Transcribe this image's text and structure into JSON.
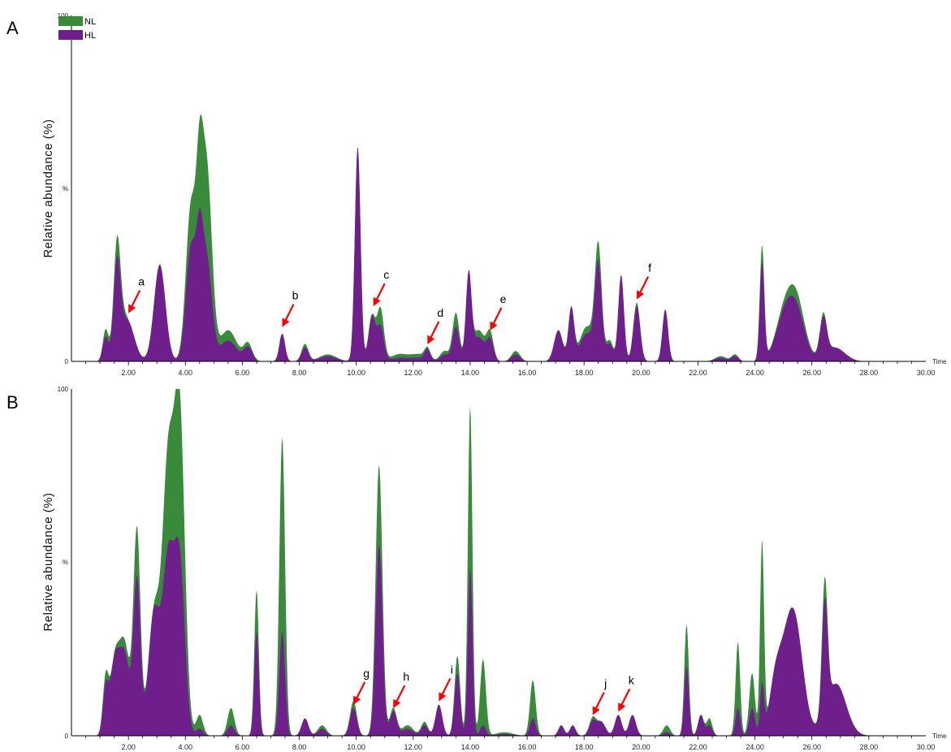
{
  "legend": [
    {
      "label": "NL",
      "color": "#3a8a3c"
    },
    {
      "label": "HL",
      "color": "#6e1f8c"
    }
  ],
  "annotation_color": "#ff0000",
  "chart_data": [
    {
      "type": "area",
      "panel_label": "A",
      "ylabel": "Relative abundance (%)",
      "xlabel": "Time",
      "y_tick_labels": [
        "0",
        "%",
        "100"
      ],
      "xlim": [
        0,
        30
      ],
      "ylim": [
        0,
        100
      ],
      "x_ticks": [
        2,
        4,
        6,
        8,
        10,
        12,
        14,
        16,
        18,
        20,
        22,
        24,
        26,
        28,
        30
      ],
      "x_tick_labels": [
        "2.00",
        "4.00",
        "6.00",
        "8.00",
        "10.00",
        "12.00",
        "14.00",
        "16.00",
        "18.00",
        "20.00",
        "22.00",
        "24.00",
        "26.00",
        "28.00",
        "30.00"
      ],
      "series": [
        {
          "name": "NL",
          "color": "#3a8a3c",
          "peaks": [
            [
              1.2,
              9,
              0.1
            ],
            [
              1.6,
              30,
              0.12
            ],
            [
              1.9,
              13,
              0.25
            ],
            [
              3.1,
              28,
              0.2
            ],
            [
              4.2,
              45,
              0.18
            ],
            [
              4.5,
              38,
              0.12
            ],
            [
              4.75,
              55,
              0.18
            ],
            [
              5.5,
              9,
              0.3
            ],
            [
              6.2,
              5,
              0.15
            ],
            [
              7.4,
              8,
              0.1
            ],
            [
              8.2,
              5,
              0.12
            ],
            [
              9.0,
              2,
              0.3
            ],
            [
              10.05,
              62,
              0.1
            ],
            [
              10.55,
              13,
              0.12
            ],
            [
              10.85,
              15,
              0.12
            ],
            [
              11.5,
              2,
              0.3
            ],
            [
              12.2,
              2,
              0.3
            ],
            [
              12.5,
              3,
              0.1
            ],
            [
              13.1,
              3,
              0.15
            ],
            [
              13.5,
              14,
              0.12
            ],
            [
              13.95,
              22,
              0.1
            ],
            [
              14.3,
              9,
              0.2
            ],
            [
              14.7,
              8,
              0.12
            ],
            [
              15.6,
              3,
              0.15
            ],
            [
              17.1,
              9,
              0.15
            ],
            [
              17.55,
              15,
              0.1
            ],
            [
              18.1,
              10,
              0.25
            ],
            [
              18.5,
              32,
              0.12
            ],
            [
              18.9,
              6,
              0.12
            ],
            [
              19.3,
              24,
              0.1
            ],
            [
              19.85,
              17,
              0.12
            ],
            [
              20.85,
              15,
              0.1
            ],
            [
              22.8,
              1.5,
              0.2
            ],
            [
              23.3,
              2,
              0.12
            ],
            [
              24.25,
              33,
              0.08
            ],
            [
              25.0,
              12,
              0.3
            ],
            [
              25.45,
              17,
              0.3
            ],
            [
              26.4,
              12,
              0.12
            ],
            [
              26.8,
              4,
              0.35
            ]
          ]
        },
        {
          "name": "HL",
          "color": "#6e1f8c",
          "peaks": [
            [
              1.2,
              7,
              0.1
            ],
            [
              1.6,
              26,
              0.12
            ],
            [
              1.95,
              12,
              0.25
            ],
            [
              3.1,
              28,
              0.2
            ],
            [
              4.2,
              33,
              0.18
            ],
            [
              4.5,
              25,
              0.12
            ],
            [
              4.75,
              29,
              0.18
            ],
            [
              5.5,
              6,
              0.3
            ],
            [
              6.2,
              4,
              0.15
            ],
            [
              7.4,
              8,
              0.1
            ],
            [
              8.2,
              4,
              0.12
            ],
            [
              9.0,
              1.5,
              0.3
            ],
            [
              10.05,
              62,
              0.1
            ],
            [
              10.55,
              13,
              0.12
            ],
            [
              10.85,
              10,
              0.12
            ],
            [
              11.5,
              1,
              0.3
            ],
            [
              12.2,
              1,
              0.3
            ],
            [
              12.5,
              3,
              0.1
            ],
            [
              13.1,
              2,
              0.15
            ],
            [
              13.5,
              10,
              0.12
            ],
            [
              13.95,
              25,
              0.1
            ],
            [
              14.3,
              7,
              0.2
            ],
            [
              14.7,
              6,
              0.12
            ],
            [
              15.6,
              2,
              0.15
            ],
            [
              17.1,
              9,
              0.15
            ],
            [
              17.55,
              15,
              0.1
            ],
            [
              18.1,
              8,
              0.25
            ],
            [
              18.5,
              27,
              0.12
            ],
            [
              18.9,
              5,
              0.12
            ],
            [
              19.3,
              25,
              0.1
            ],
            [
              19.85,
              16,
              0.12
            ],
            [
              20.85,
              15,
              0.1
            ],
            [
              22.8,
              1,
              0.2
            ],
            [
              23.3,
              1.5,
              0.12
            ],
            [
              24.25,
              28,
              0.08
            ],
            [
              25.0,
              11,
              0.3
            ],
            [
              25.45,
              14,
              0.3
            ],
            [
              26.4,
              11,
              0.12
            ],
            [
              26.8,
              4,
              0.35
            ]
          ]
        }
      ],
      "annotations": [
        {
          "label": "a",
          "x": 2.0,
          "y": 13
        },
        {
          "label": "b",
          "x": 7.4,
          "y": 9
        },
        {
          "label": "c",
          "x": 10.6,
          "y": 15
        },
        {
          "label": "d",
          "x": 12.5,
          "y": 4
        },
        {
          "label": "e",
          "x": 14.7,
          "y": 8
        },
        {
          "label": "f",
          "x": 19.85,
          "y": 17
        }
      ]
    },
    {
      "type": "area",
      "panel_label": "B",
      "ylabel": "Relative abundance (%)",
      "xlabel": "Time",
      "y_tick_labels": [
        "0",
        "%",
        "100"
      ],
      "xlim": [
        0,
        30
      ],
      "ylim": [
        0,
        100
      ],
      "x_ticks": [
        2,
        4,
        6,
        8,
        10,
        12,
        14,
        16,
        18,
        20,
        22,
        24,
        26,
        28,
        30
      ],
      "x_tick_labels": [
        "2.00",
        "4.00",
        "6.00",
        "8.00",
        "10.00",
        "12.00",
        "14.00",
        "16.00",
        "18.00",
        "20.00",
        "22.00",
        "24.00",
        "26.00",
        "28.00",
        "30.00"
      ],
      "series": [
        {
          "name": "NL",
          "color": "#3a8a3c",
          "peaks": [
            [
              1.2,
              16,
              0.1
            ],
            [
              1.5,
              18,
              0.15
            ],
            [
              1.85,
              27,
              0.2
            ],
            [
              2.3,
              58,
              0.12
            ],
            [
              2.9,
              35,
              0.2
            ],
            [
              3.4,
              78,
              0.2
            ],
            [
              3.8,
              90,
              0.18
            ],
            [
              4.5,
              6,
              0.12
            ],
            [
              5.6,
              8,
              0.12
            ],
            [
              6.5,
              42,
              0.08
            ],
            [
              7.4,
              86,
              0.1
            ],
            [
              8.2,
              5,
              0.12
            ],
            [
              8.8,
              3,
              0.15
            ],
            [
              9.9,
              10,
              0.12
            ],
            [
              10.8,
              78,
              0.12
            ],
            [
              11.3,
              8,
              0.12
            ],
            [
              11.8,
              3,
              0.2
            ],
            [
              12.4,
              4,
              0.12
            ],
            [
              12.9,
              8,
              0.12
            ],
            [
              13.55,
              23,
              0.1
            ],
            [
              14.0,
              95,
              0.08
            ],
            [
              14.45,
              22,
              0.1
            ],
            [
              15.2,
              1,
              0.3
            ],
            [
              16.2,
              16,
              0.1
            ],
            [
              17.2,
              3,
              0.1
            ],
            [
              17.6,
              3,
              0.1
            ],
            [
              18.3,
              5,
              0.12
            ],
            [
              18.6,
              4,
              0.15
            ],
            [
              19.2,
              6,
              0.12
            ],
            [
              19.7,
              6,
              0.12
            ],
            [
              20.9,
              3,
              0.12
            ],
            [
              21.6,
              32,
              0.08
            ],
            [
              22.1,
              6,
              0.1
            ],
            [
              22.4,
              5,
              0.1
            ],
            [
              23.4,
              27,
              0.08
            ],
            [
              23.9,
              18,
              0.1
            ],
            [
              24.25,
              55,
              0.07
            ],
            [
              24.7,
              10,
              0.2
            ],
            [
              25.0,
              14,
              0.3
            ],
            [
              25.4,
              30,
              0.3
            ],
            [
              26.45,
              38,
              0.1
            ],
            [
              26.85,
              15,
              0.35
            ]
          ]
        },
        {
          "name": "HL",
          "color": "#6e1f8c",
          "peaks": [
            [
              1.2,
              13,
              0.1
            ],
            [
              1.5,
              18,
              0.15
            ],
            [
              1.85,
              24,
              0.2
            ],
            [
              2.3,
              44,
              0.12
            ],
            [
              2.9,
              35,
              0.2
            ],
            [
              3.4,
              50,
              0.2
            ],
            [
              3.8,
              48,
              0.18
            ],
            [
              4.5,
              2,
              0.12
            ],
            [
              5.6,
              3,
              0.12
            ],
            [
              6.5,
              30,
              0.08
            ],
            [
              7.4,
              30,
              0.1
            ],
            [
              8.2,
              5,
              0.12
            ],
            [
              8.8,
              2,
              0.15
            ],
            [
              9.9,
              8,
              0.12
            ],
            [
              10.8,
              55,
              0.12
            ],
            [
              11.3,
              7,
              0.12
            ],
            [
              11.8,
              2,
              0.2
            ],
            [
              12.4,
              3,
              0.12
            ],
            [
              12.9,
              9,
              0.12
            ],
            [
              13.55,
              18,
              0.1
            ],
            [
              14.0,
              48,
              0.08
            ],
            [
              14.45,
              3,
              0.1
            ],
            [
              15.2,
              0.5,
              0.3
            ],
            [
              16.2,
              5,
              0.1
            ],
            [
              17.2,
              3,
              0.1
            ],
            [
              17.6,
              3,
              0.1
            ],
            [
              18.3,
              4,
              0.12
            ],
            [
              18.6,
              4,
              0.15
            ],
            [
              19.2,
              6,
              0.12
            ],
            [
              19.7,
              6,
              0.12
            ],
            [
              20.9,
              1,
              0.12
            ],
            [
              21.6,
              20,
              0.08
            ],
            [
              22.1,
              6,
              0.1
            ],
            [
              22.4,
              3,
              0.1
            ],
            [
              23.4,
              8,
              0.08
            ],
            [
              23.9,
              8,
              0.1
            ],
            [
              24.25,
              14,
              0.07
            ],
            [
              24.7,
              10,
              0.2
            ],
            [
              25.0,
              14,
              0.3
            ],
            [
              25.4,
              30,
              0.3
            ],
            [
              26.45,
              32,
              0.1
            ],
            [
              26.85,
              15,
              0.35
            ]
          ]
        }
      ],
      "annotations": [
        {
          "label": "g",
          "x": 9.9,
          "y": 8
        },
        {
          "label": "h",
          "x": 11.3,
          "y": 7
        },
        {
          "label": "i",
          "x": 12.9,
          "y": 9
        },
        {
          "label": "j",
          "x": 18.3,
          "y": 5
        },
        {
          "label": "k",
          "x": 19.2,
          "y": 6
        }
      ]
    }
  ]
}
